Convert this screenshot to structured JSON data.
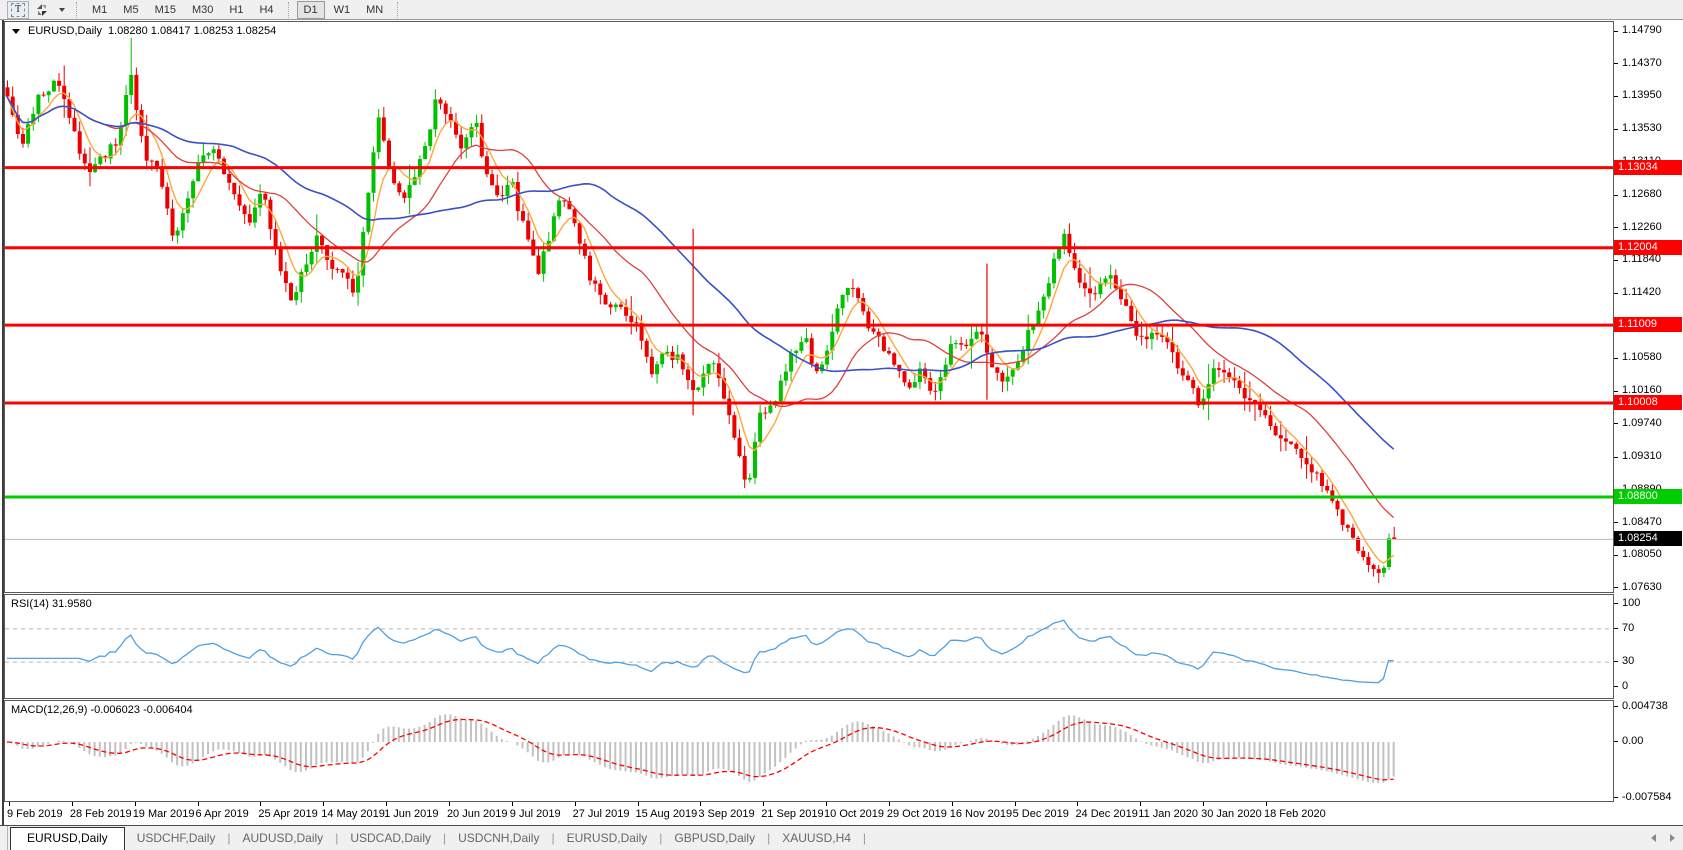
{
  "toolbar": {
    "text_tool": "T",
    "timeframes": [
      "M1",
      "M5",
      "M15",
      "M30",
      "H1",
      "H4",
      "D1",
      "W1",
      "MN"
    ],
    "active_timeframe": "D1"
  },
  "chart": {
    "symbol": "EURUSD,Daily",
    "quote": "1.08280 1.08417 1.08253 1.08254",
    "price_axis_ticks": [
      "1.14790",
      "1.14370",
      "1.13950",
      "1.13530",
      "1.13110",
      "1.12680",
      "1.12260",
      "1.11840",
      "1.11420",
      "1.11000",
      "1.10580",
      "1.10160",
      "1.09740",
      "1.09310",
      "1.08890",
      "1.08470",
      "1.08050",
      "1.07630"
    ],
    "levels": [
      {
        "label": "1.13034",
        "color": "#ff0000"
      },
      {
        "label": "1.12004",
        "color": "#ff0000"
      },
      {
        "label": "1.11009",
        "color": "#ff0000"
      },
      {
        "label": "1.10008",
        "color": "#ff0000"
      },
      {
        "label": "1.08800",
        "color": "#00cd00"
      }
    ],
    "current_price": {
      "label": "1.08254",
      "color": "#000000"
    }
  },
  "rsi": {
    "label": "RSI(14) 31.9580",
    "axis": [
      "100",
      "70",
      "30",
      "0"
    ],
    "overbought": 70,
    "oversold": 30
  },
  "macd": {
    "label": "MACD(12,26,9) -0.006023 -0.006404",
    "axis": [
      "0.004738",
      "0.00",
      "-0.007584"
    ]
  },
  "date_axis": {
    "labels": [
      "9 Feb 2019",
      "28 Feb 2019",
      "19 Mar 2019",
      "6 Apr 2019",
      "25 Apr 2019",
      "14 May 2019",
      "1 Jun 2019",
      "20 Jun 2019",
      "9 Jul 2019",
      "27 Jul 2019",
      "15 Aug 2019",
      "3 Sep 2019",
      "21 Sep 2019",
      "10 Oct 2019",
      "29 Oct 2019",
      "16 Nov 2019",
      "5 Dec 2019",
      "24 Dec 2019",
      "11 Jan 2020",
      "30 Jan 2020",
      "18 Feb 2020"
    ]
  },
  "tabs": {
    "separator": "|",
    "items": [
      {
        "label": "EURUSD,Daily",
        "active": true
      },
      {
        "label": "USDCHF,Daily",
        "active": false
      },
      {
        "label": "AUDUSD,Daily",
        "active": false
      },
      {
        "label": "USDCAD,Daily",
        "active": false
      },
      {
        "label": "USDCNH,Daily",
        "active": false
      },
      {
        "label": "EURUSD,Daily",
        "active": false
      },
      {
        "label": "GBPUSD,Daily",
        "active": false
      },
      {
        "label": "XAUUSD,H4",
        "active": false
      }
    ]
  },
  "colors": {
    "bull": "#00c000",
    "bear": "#ee0000",
    "ma_fast": "#ffa63c",
    "ma_mid": "#df4040",
    "ma_slow": "#3a50c8",
    "rsi_line": "#4fa0e0",
    "rsi_levels": "#b8b8b8",
    "macd_hist": "#c2c2c2",
    "macd_signal": "#ff0000",
    "bid_line": "#b9b9b9"
  },
  "chart_data": {
    "type": "candlestick",
    "symbol": "EURUSD",
    "timeframe": "Daily",
    "bars": 270,
    "price_top": 1.1479,
    "price_bottom": 1.0763,
    "last_bar": {
      "open": 1.0828,
      "high": 1.08417,
      "low": 1.08253,
      "close": 1.08254
    },
    "prev_bar": {
      "open": 1.079,
      "high": 1.0833,
      "low": 1.0786,
      "close": 1.0827
    },
    "levels": [
      1.13034,
      1.12004,
      1.11009,
      1.10008,
      1.088
    ],
    "rsi_last": 31.958,
    "macd_last": -0.006023,
    "macd_signal_last": -0.006404,
    "spike_high": {
      "frac": 0.089,
      "price": 1.147
    },
    "vlines": [
      {
        "frac": 0.4945,
        "top": 1.1225,
        "bottom": 1.0985
      },
      {
        "frac": 0.7045,
        "top": 1.118,
        "bottom": 1.1005
      }
    ],
    "price_path": [
      [
        0.0,
        1.139
      ],
      [
        0.009,
        1.133
      ],
      [
        0.022,
        1.139
      ],
      [
        0.035,
        1.1415
      ],
      [
        0.045,
        1.1365
      ],
      [
        0.058,
        1.129
      ],
      [
        0.067,
        1.1315
      ],
      [
        0.08,
        1.134
      ],
      [
        0.089,
        1.143
      ],
      [
        0.099,
        1.131
      ],
      [
        0.11,
        1.13
      ],
      [
        0.119,
        1.121
      ],
      [
        0.128,
        1.1255
      ],
      [
        0.139,
        1.131
      ],
      [
        0.149,
        1.1325
      ],
      [
        0.161,
        1.128
      ],
      [
        0.174,
        1.123
      ],
      [
        0.184,
        1.1275
      ],
      [
        0.195,
        1.118
      ],
      [
        0.205,
        1.1125
      ],
      [
        0.215,
        1.118
      ],
      [
        0.224,
        1.1215
      ],
      [
        0.233,
        1.118
      ],
      [
        0.242,
        1.117
      ],
      [
        0.251,
        1.114
      ],
      [
        0.26,
        1.127
      ],
      [
        0.267,
        1.1375
      ],
      [
        0.276,
        1.13
      ],
      [
        0.285,
        1.1265
      ],
      [
        0.294,
        1.129
      ],
      [
        0.304,
        1.135
      ],
      [
        0.31,
        1.1395
      ],
      [
        0.319,
        1.137
      ],
      [
        0.328,
        1.133
      ],
      [
        0.337,
        1.1365
      ],
      [
        0.347,
        1.1285
      ],
      [
        0.355,
        1.127
      ],
      [
        0.364,
        1.128
      ],
      [
        0.373,
        1.122
      ],
      [
        0.383,
        1.117
      ],
      [
        0.39,
        1.121
      ],
      [
        0.399,
        1.1275
      ],
      [
        0.409,
        1.123
      ],
      [
        0.42,
        1.116
      ],
      [
        0.431,
        1.113
      ],
      [
        0.442,
        1.1125
      ],
      [
        0.453,
        1.11
      ],
      [
        0.464,
        1.104
      ],
      [
        0.474,
        1.107
      ],
      [
        0.485,
        1.1055
      ],
      [
        0.496,
        1.101
      ],
      [
        0.507,
        1.106
      ],
      [
        0.518,
        1.1
      ],
      [
        0.528,
        1.093
      ],
      [
        0.534,
        1.0895
      ],
      [
        0.543,
        1.0985
      ],
      [
        0.554,
        1.101
      ],
      [
        0.564,
        1.106
      ],
      [
        0.575,
        1.109
      ],
      [
        0.582,
        1.104
      ],
      [
        0.59,
        1.106
      ],
      [
        0.601,
        1.114
      ],
      [
        0.608,
        1.116
      ],
      [
        0.616,
        1.112
      ],
      [
        0.626,
        1.1085
      ],
      [
        0.637,
        1.106
      ],
      [
        0.647,
        1.102
      ],
      [
        0.658,
        1.104
      ],
      [
        0.669,
        1.1015
      ],
      [
        0.68,
        1.107
      ],
      [
        0.691,
        1.108
      ],
      [
        0.701,
        1.11
      ],
      [
        0.712,
        1.104
      ],
      [
        0.723,
        1.103
      ],
      [
        0.734,
        1.108
      ],
      [
        0.745,
        1.112
      ],
      [
        0.756,
        1.119
      ],
      [
        0.763,
        1.1215
      ],
      [
        0.774,
        1.115
      ],
      [
        0.784,
        1.1145
      ],
      [
        0.795,
        1.116
      ],
      [
        0.806,
        1.113
      ],
      [
        0.817,
        1.108
      ],
      [
        0.828,
        1.1095
      ],
      [
        0.838,
        1.107
      ],
      [
        0.849,
        1.103
      ],
      [
        0.86,
        1.1
      ],
      [
        0.871,
        1.105
      ],
      [
        0.882,
        1.104
      ],
      [
        0.893,
        1.101
      ],
      [
        0.903,
        1.099
      ],
      [
        0.914,
        1.0965
      ],
      [
        0.925,
        1.0945
      ],
      [
        0.936,
        1.0925
      ],
      [
        0.947,
        1.09
      ],
      [
        0.957,
        1.0865
      ],
      [
        0.968,
        1.083
      ],
      [
        0.979,
        1.08
      ],
      [
        0.988,
        1.078
      ],
      [
        0.995,
        1.079
      ],
      [
        1.0,
        1.0825
      ]
    ]
  }
}
